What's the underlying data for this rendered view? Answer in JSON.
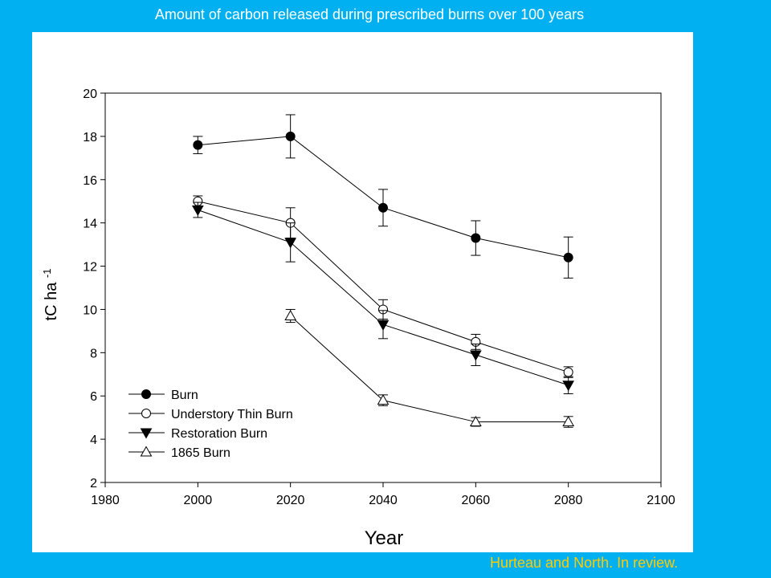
{
  "slide": {
    "title": "Amount of carbon released during prescribed burns over 100 years",
    "citation": "Hurteau and North.  In review."
  },
  "colors": {
    "background": "#00b0f0",
    "panel": "#ffffff",
    "citation": "#ffcc00",
    "ink": "#000000"
  },
  "chart_data": {
    "type": "line",
    "title": "",
    "xlabel": "Year",
    "ylabel": "tC ha",
    "ylabel_superscript": "-1",
    "xlim": [
      1980,
      2100
    ],
    "ylim": [
      2,
      20
    ],
    "xticks": [
      1980,
      2000,
      2020,
      2040,
      2060,
      2080,
      2100
    ],
    "yticks": [
      2,
      4,
      6,
      8,
      10,
      12,
      14,
      16,
      18,
      20
    ],
    "grid": false,
    "legend_position": "bottom-left",
    "series": [
      {
        "name": "Burn",
        "marker": "filled-circle",
        "x": [
          2000,
          2020,
          2040,
          2060,
          2080
        ],
        "y": [
          17.6,
          18.0,
          14.7,
          13.3,
          12.4
        ],
        "err": [
          0.4,
          1.0,
          0.85,
          0.8,
          0.95
        ]
      },
      {
        "name": "Understory Thin Burn",
        "marker": "open-circle",
        "x": [
          2000,
          2020,
          2040,
          2060,
          2080
        ],
        "y": [
          15.0,
          14.0,
          10.0,
          8.5,
          7.1
        ],
        "err": [
          0.25,
          0.7,
          0.45,
          0.35,
          0.25
        ]
      },
      {
        "name": "Restoration Burn",
        "marker": "filled-triangle-down",
        "x": [
          2000,
          2020,
          2040,
          2060,
          2080
        ],
        "y": [
          14.6,
          13.1,
          9.3,
          7.9,
          6.5
        ],
        "err": [
          0.35,
          0.9,
          0.65,
          0.5,
          0.4
        ]
      },
      {
        "name": "1865 Burn",
        "marker": "open-triangle-up",
        "x": [
          2020,
          2040,
          2060,
          2080
        ],
        "y": [
          9.7,
          5.8,
          4.8,
          4.8
        ],
        "err": [
          0.3,
          0.25,
          0.2,
          0.25
        ]
      }
    ]
  }
}
